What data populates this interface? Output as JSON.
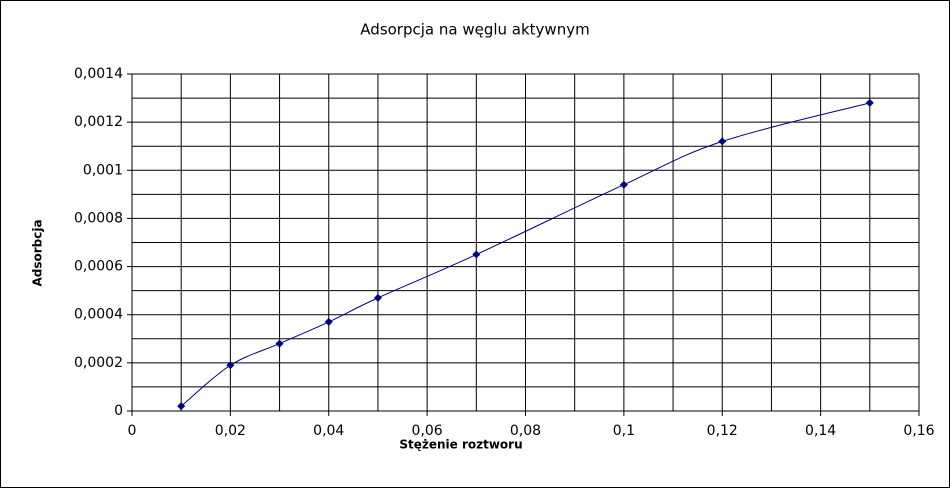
{
  "chart_data": {
    "type": "scatter",
    "title": "Adsorpcja na węglu aktywnym",
    "xlabel": "Stężenie roztworu",
    "ylabel": "Adsorbcja",
    "x": [
      0.01,
      0.02,
      0.03,
      0.04,
      0.05,
      0.07,
      0.1,
      0.12,
      0.15
    ],
    "series": [
      {
        "color": "#000080",
        "values": [
          2e-05,
          0.00019,
          0.00028,
          0.00037,
          0.00047,
          0.00065,
          0.00094,
          0.00112,
          0.00128
        ]
      }
    ],
    "xlim": [
      0,
      0.16
    ],
    "ylim": [
      0,
      0.0014
    ],
    "xticks": [
      0,
      {
        "value": 0.02,
        "label": "0,02"
      },
      {
        "value": 0.04,
        "label": "0,04"
      },
      {
        "value": 0.06,
        "label": "0,06"
      },
      {
        "value": 0.08,
        "label": "0,08"
      },
      {
        "value": 0.1,
        "label": "0,1"
      },
      {
        "value": 0.12,
        "label": "0,12"
      },
      {
        "value": 0.14,
        "label": "0,14"
      },
      {
        "value": 0.16,
        "label": "0,16"
      }
    ],
    "yticks": [
      0,
      {
        "value": 0.0002,
        "label": "0,0002"
      },
      {
        "value": 0.0004,
        "label": "0,0004"
      },
      {
        "value": 0.0006,
        "label": "0,0006"
      },
      {
        "value": 0.0008,
        "label": "0,0008"
      },
      {
        "value": 0.001,
        "label": "0,001"
      },
      {
        "value": 0.0012,
        "label": "0,0012"
      },
      {
        "value": 0.0014,
        "label": "0,0014"
      }
    ],
    "xgrid": [
      0,
      0.01,
      0.02,
      0.03,
      0.04,
      0.05,
      0.06,
      0.07,
      0.08,
      0.09,
      0.1,
      0.11,
      0.12,
      0.13,
      0.14,
      0.15,
      0.16
    ],
    "ygrid": [
      0,
      0.0001,
      0.0002,
      0.0003,
      0.0004,
      0.0005,
      0.0006,
      0.0007,
      0.0008,
      0.0009,
      0.001,
      0.0011,
      0.0012,
      0.0013,
      0.0014
    ],
    "smooth": true
  }
}
